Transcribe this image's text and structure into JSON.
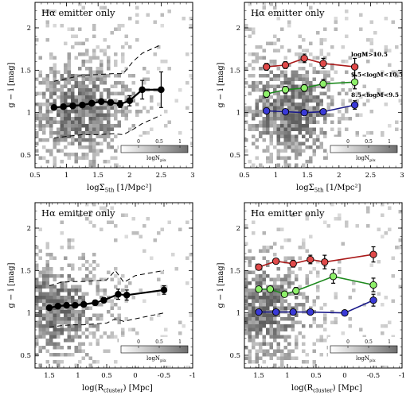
{
  "chart_data": [
    {
      "type": "scatter",
      "panel": "top-left",
      "title": "Hα emitter only",
      "xlabel": "logΣ5th [1/Mpc²]",
      "ylabel": "g − i [mag]",
      "xlim": [
        0.5,
        3
      ],
      "ylim": [
        0.35,
        2.3
      ],
      "x_reversed": false,
      "xticks": [
        "0.5",
        "1",
        "1.5",
        "2",
        "2.5",
        "3"
      ],
      "yticks": [
        "0.5",
        "1",
        "1.5",
        "2"
      ],
      "colorbar": {
        "label": "logNpix",
        "ticks": [
          "0",
          "0.5",
          "1"
        ]
      },
      "series": [
        {
          "color": "#000000",
          "x": [
            0.8,
            0.95,
            1.1,
            1.25,
            1.4,
            1.55,
            1.7,
            1.85,
            2.0,
            2.2,
            2.5
          ],
          "y": [
            1.06,
            1.07,
            1.08,
            1.09,
            1.11,
            1.13,
            1.12,
            1.1,
            1.14,
            1.27,
            1.27
          ],
          "yerr": [
            0.02,
            0.02,
            0.02,
            0.02,
            0.02,
            0.03,
            0.03,
            0.04,
            0.06,
            0.11,
            0.21
          ]
        }
      ],
      "bands": [
        {
          "style": "dashed",
          "x": [
            0.8,
            1.0,
            1.25,
            1.5,
            1.75,
            1.9,
            2.05,
            2.2,
            2.5
          ],
          "upper": [
            1.37,
            1.4,
            1.44,
            1.45,
            1.46,
            1.46,
            1.6,
            1.7,
            1.8
          ],
          "lower": [
            0.7,
            0.72,
            0.74,
            0.74,
            0.75,
            0.74,
            0.8,
            0.87,
            0.97
          ]
        }
      ]
    },
    {
      "type": "scatter",
      "panel": "top-right",
      "title": "Hα emitter only",
      "xlabel": "logΣ5th [1/Mpc²]",
      "ylabel": "g − i [mag]",
      "xlim": [
        0.5,
        3
      ],
      "ylim": [
        0.35,
        2.3
      ],
      "x_reversed": false,
      "xticks": [
        "0.5",
        "1",
        "1.5",
        "2",
        "2.5",
        "3"
      ],
      "yticks": [
        "0.5",
        "1",
        "1.5",
        "2"
      ],
      "colorbar": {
        "label": "logNpix",
        "ticks": [
          "0",
          "0.5",
          "1"
        ]
      },
      "series": [
        {
          "name": "logM>10.5",
          "color": "#aa1a1a",
          "x": [
            0.85,
            1.15,
            1.45,
            1.75,
            2.25
          ],
          "y": [
            1.54,
            1.56,
            1.64,
            1.58,
            1.54
          ],
          "yerr": [
            0.04,
            0.04,
            0.05,
            0.06,
            0.1
          ]
        },
        {
          "name": "9.5<logM<10.5",
          "color": "#1e8a1e",
          "x": [
            0.85,
            1.15,
            1.45,
            1.75,
            2.25
          ],
          "y": [
            1.22,
            1.27,
            1.29,
            1.34,
            1.36
          ],
          "yerr": [
            0.04,
            0.04,
            0.04,
            0.05,
            0.08
          ]
        },
        {
          "name": "8.5<logM<9.5",
          "color": "#1a1a8a",
          "x": [
            0.85,
            1.15,
            1.45,
            1.75,
            2.25
          ],
          "y": [
            1.02,
            1.01,
            1.0,
            1.01,
            1.09
          ],
          "yerr": [
            0.02,
            0.02,
            0.02,
            0.03,
            0.05
          ]
        }
      ]
    },
    {
      "type": "scatter",
      "panel": "bottom-left",
      "title": "Hα emitter only",
      "xlabel": "log(Rcluster) [Mpc]",
      "ylabel": "g − i [mag]",
      "xlim": [
        1.75,
        -1
      ],
      "ylim": [
        0.35,
        2.3
      ],
      "x_reversed": true,
      "xticks": [
        "1.5",
        "1",
        "0.5",
        "0",
        "-0.5",
        "-1"
      ],
      "yticks": [
        "0.5",
        "1",
        "1.5",
        "2"
      ],
      "colorbar": {
        "label": "logNpix",
        "ticks": [
          "0",
          "0.5",
          "1"
        ]
      },
      "series": [
        {
          "color": "#000000",
          "x": [
            1.5,
            1.35,
            1.2,
            1.05,
            0.9,
            0.7,
            0.55,
            0.3,
            0.15,
            -0.5
          ],
          "y": [
            1.06,
            1.08,
            1.09,
            1.09,
            1.1,
            1.12,
            1.15,
            1.22,
            1.21,
            1.27
          ],
          "yerr": [
            0.02,
            0.02,
            0.02,
            0.02,
            0.02,
            0.03,
            0.03,
            0.06,
            0.06,
            0.05
          ]
        }
      ],
      "bands": [
        {
          "style": "dashed",
          "x": [
            1.5,
            1.3,
            1.1,
            0.9,
            0.7,
            0.5,
            0.35,
            0.2,
            0.0,
            -0.5
          ],
          "upper": [
            1.32,
            1.36,
            1.37,
            1.37,
            1.38,
            1.39,
            1.5,
            1.36,
            1.44,
            1.5
          ],
          "lower": [
            0.83,
            0.85,
            0.86,
            0.86,
            0.87,
            0.88,
            0.93,
            0.9,
            0.93,
            1.0
          ]
        }
      ]
    },
    {
      "type": "scatter",
      "panel": "bottom-right",
      "title": "Hα emitter only",
      "xlabel": "log(Rcluster) [Mpc]",
      "ylabel": "g − i [mag]",
      "xlim": [
        1.75,
        -1
      ],
      "ylim": [
        0.35,
        2.3
      ],
      "x_reversed": true,
      "xticks": [
        "1.5",
        "1",
        "0.5",
        "0",
        "-0.5",
        "-1"
      ],
      "yticks": [
        "0.5",
        "1",
        "1.5",
        "2"
      ],
      "colorbar": {
        "label": "logNpix",
        "ticks": [
          "0",
          "0.5",
          "1"
        ]
      },
      "series": [
        {
          "color": "#aa1a1a",
          "x": [
            1.5,
            1.2,
            0.9,
            0.6,
            0.35,
            -0.5
          ],
          "y": [
            1.54,
            1.61,
            1.58,
            1.63,
            1.6,
            1.69
          ],
          "yerr": [
            0.03,
            0.03,
            0.04,
            0.05,
            0.08,
            0.09
          ]
        },
        {
          "color": "#1e8a1e",
          "x": [
            1.5,
            1.3,
            1.05,
            0.85,
            0.2,
            -0.5
          ],
          "y": [
            1.28,
            1.28,
            1.22,
            1.26,
            1.43,
            1.33
          ],
          "yerr": [
            0.02,
            0.02,
            0.03,
            0.04,
            0.08,
            0.08
          ]
        },
        {
          "color": "#1a1a8a",
          "x": [
            1.5,
            1.2,
            0.9,
            0.6,
            0.0,
            -0.5
          ],
          "y": [
            1.01,
            1.01,
            1.01,
            1.01,
            1.0,
            1.15
          ],
          "yerr": [
            0.02,
            0.02,
            0.02,
            0.02,
            0.02,
            0.07
          ]
        }
      ]
    }
  ]
}
